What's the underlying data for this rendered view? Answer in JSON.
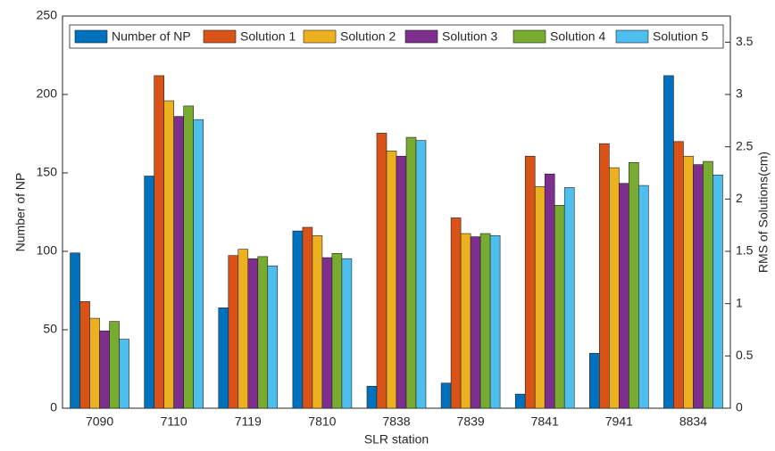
{
  "chart_data": {
    "type": "bar",
    "x_label": "SLR station",
    "y_label": "Number of NP",
    "y2_label": "RMS of Solutions(cm)",
    "categories": [
      "7090",
      "7110",
      "7119",
      "7810",
      "7838",
      "7839",
      "7841",
      "7941",
      "8834"
    ],
    "series": [
      {
        "name": "Number of NP",
        "color": "#0072BD",
        "values": [
          99,
          148,
          64,
          113,
          14,
          16,
          9,
          35,
          212
        ]
      },
      {
        "name": "Solution 1",
        "color": "#D95319",
        "axis": "y2",
        "values": [
          1.02,
          3.18,
          1.46,
          1.73,
          2.63,
          1.82,
          2.41,
          2.53,
          2.55
        ]
      },
      {
        "name": "Solution 2",
        "color": "#EDB120",
        "axis": "y2",
        "values": [
          0.86,
          2.94,
          1.52,
          1.65,
          2.46,
          1.67,
          2.12,
          2.3,
          2.41
        ]
      },
      {
        "name": "Solution 3",
        "color": "#7E2F8E",
        "axis": "y2",
        "values": [
          0.74,
          2.79,
          1.43,
          1.44,
          2.41,
          1.64,
          2.24,
          2.15,
          2.33
        ]
      },
      {
        "name": "Solution 4",
        "color": "#77AC30",
        "axis": "y2",
        "values": [
          0.83,
          2.89,
          1.45,
          1.48,
          2.59,
          1.67,
          1.94,
          2.35,
          2.36
        ]
      },
      {
        "name": "Solution 5",
        "color": "#4DBEEE",
        "axis": "y2",
        "values": [
          0.66,
          2.76,
          1.36,
          1.43,
          2.56,
          1.65,
          2.11,
          2.13,
          2.23
        ]
      }
    ],
    "ylim": [
      0,
      250
    ],
    "yticks": [
      0,
      50,
      100,
      150,
      200,
      250
    ],
    "y2lim": [
      0,
      3.75
    ],
    "y2ticks": [
      0,
      0.5,
      1,
      1.5,
      2,
      2.5,
      3,
      3.5
    ],
    "legend": "top"
  }
}
